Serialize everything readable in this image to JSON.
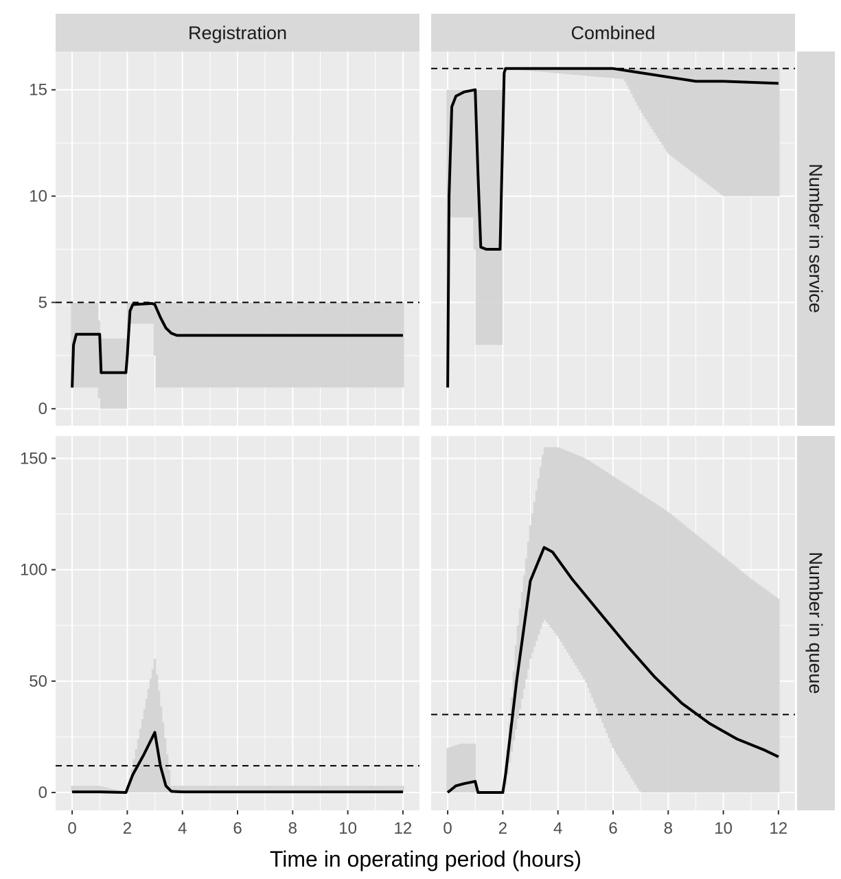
{
  "figure": {
    "xlabel": "Time in operating period (hours)",
    "columns": [
      "Registration",
      "Combined"
    ],
    "rows": [
      "Number in service",
      "Number in queue"
    ],
    "colors": {
      "panel_bg": "#ebebeb",
      "grid_major": "#ffffff",
      "strip_bg": "#d9d9d9",
      "ribbon": "#d4d4d4",
      "line": "#000000",
      "reference": "#000000"
    }
  },
  "chart_data": [
    {
      "type": "line",
      "panel": "Registration / Number in service",
      "xlim": [
        -0.6,
        12.6
      ],
      "ylim": [
        -0.8,
        16.8
      ],
      "x_ticks": [
        0,
        2,
        4,
        6,
        8,
        10,
        12
      ],
      "y_ticks": [
        0,
        5,
        10,
        15
      ],
      "grid": true,
      "reference_line": 5,
      "series": [
        {
          "x": [
            0,
            0.05,
            0.15,
            1.0,
            1.05,
            1.95,
            2.0,
            2.1,
            2.2,
            2.9,
            3.0,
            3.2,
            3.4,
            3.6,
            3.8,
            12
          ],
          "y": [
            1,
            3.0,
            3.5,
            3.5,
            1.7,
            1.7,
            2.5,
            4.6,
            4.9,
            4.95,
            4.9,
            4.3,
            3.8,
            3.55,
            3.45,
            3.45
          ]
        }
      ],
      "ribbons": [
        {
          "x": [
            0,
            0.05,
            0.95,
            1.0,
            1.95,
            2.0,
            2.1,
            2.95,
            3.05,
            12
          ],
          "lower": [
            1,
            1,
            1,
            0,
            0,
            2,
            4,
            4,
            1,
            1
          ],
          "upper": [
            5,
            5,
            5,
            3.3,
            3.3,
            5,
            5,
            5,
            5,
            5
          ]
        }
      ]
    },
    {
      "type": "line",
      "panel": "Combined / Number in service",
      "xlim": [
        -0.6,
        12.6
      ],
      "ylim": [
        -0.8,
        16.8
      ],
      "x_ticks": [
        0,
        2,
        4,
        6,
        8,
        10,
        12
      ],
      "y_ticks": [
        0,
        5,
        10,
        15
      ],
      "grid": true,
      "reference_line": 16,
      "series": [
        {
          "x": [
            0,
            0.05,
            0.15,
            0.3,
            0.6,
            1.0,
            1.1,
            1.2,
            1.4,
            1.9,
            2.0,
            2.05,
            2.1,
            2.5,
            6.0,
            7.0,
            8.0,
            9.0,
            10.0,
            11.0,
            12.0
          ],
          "y": [
            1,
            10,
            14.2,
            14.7,
            14.9,
            15.0,
            11,
            7.6,
            7.5,
            7.5,
            13,
            15.8,
            16,
            16,
            16,
            15.8,
            15.6,
            15.4,
            15.4,
            15.35,
            15.3
          ]
        }
      ],
      "ribbons": [
        {
          "x": [
            0,
            0.05,
            0.2,
            0.95,
            1.05,
            1.95,
            2.05,
            6.4,
            7.0,
            7.5,
            8.0,
            9.0,
            10.0,
            12.0
          ],
          "lower": [
            1,
            9,
            9,
            9,
            3,
            3,
            16,
            15.5,
            14,
            13,
            12,
            11,
            10,
            10
          ],
          "upper": [
            15,
            15,
            15,
            15,
            15,
            15,
            16,
            16,
            16,
            16,
            16,
            16,
            16,
            16
          ]
        }
      ]
    },
    {
      "type": "line",
      "panel": "Registration / Number in queue",
      "xlim": [
        -0.6,
        12.6
      ],
      "ylim": [
        -8,
        160
      ],
      "x_ticks": [
        0,
        2,
        4,
        6,
        8,
        10,
        12
      ],
      "y_ticks": [
        0,
        50,
        100,
        150
      ],
      "grid": true,
      "reference_line": 12,
      "series": [
        {
          "x": [
            0,
            1.0,
            1.95,
            2.2,
            2.6,
            3.0,
            3.2,
            3.4,
            3.6,
            4.0,
            12
          ],
          "y": [
            0.3,
            0.3,
            0,
            8,
            17,
            27,
            12,
            3,
            0.5,
            0.3,
            0.3
          ]
        }
      ],
      "ribbons": [
        {
          "x": [
            0,
            1.0,
            2.0,
            3.0,
            3.6,
            4.0,
            12
          ],
          "lower": [
            0,
            0,
            0,
            0,
            0,
            0,
            0
          ],
          "upper": [
            3,
            3,
            0,
            60,
            3,
            3,
            3
          ]
        }
      ]
    },
    {
      "type": "line",
      "panel": "Combined / Number in queue",
      "xlim": [
        -0.6,
        12.6
      ],
      "ylim": [
        -8,
        160
      ],
      "x_ticks": [
        0,
        2,
        4,
        6,
        8,
        10,
        12
      ],
      "y_ticks": [
        0,
        50,
        100,
        150
      ],
      "grid": true,
      "reference_line": 35,
      "series": [
        {
          "x": [
            0,
            0.3,
            0.6,
            1.0,
            1.1,
            2.0,
            2.1,
            2.5,
            3.0,
            3.5,
            3.8,
            4.5,
            5.5,
            6.5,
            7.5,
            8.5,
            9.5,
            10.5,
            11.5,
            12.0
          ],
          "y": [
            0,
            3,
            4,
            5,
            0,
            0,
            8,
            50,
            95,
            110,
            108,
            96,
            81,
            66,
            52,
            40,
            31,
            24,
            19,
            16
          ]
        }
      ],
      "ribbons": [
        {
          "x": [
            0,
            0.5,
            1.0,
            1.05,
            2.05,
            2.5,
            3.0,
            3.5,
            4.0,
            5.0,
            6.0,
            7.0,
            8.0,
            9.0,
            10.0,
            11.0,
            12.0
          ],
          "lower": [
            0,
            0,
            0,
            0,
            0,
            30,
            60,
            78,
            70,
            50,
            20,
            0,
            0,
            0,
            0,
            0,
            0
          ],
          "upper": [
            20,
            22,
            22,
            0,
            0,
            70,
            120,
            155,
            155,
            150,
            142,
            134,
            126,
            116,
            106,
            96,
            87
          ]
        }
      ]
    }
  ]
}
